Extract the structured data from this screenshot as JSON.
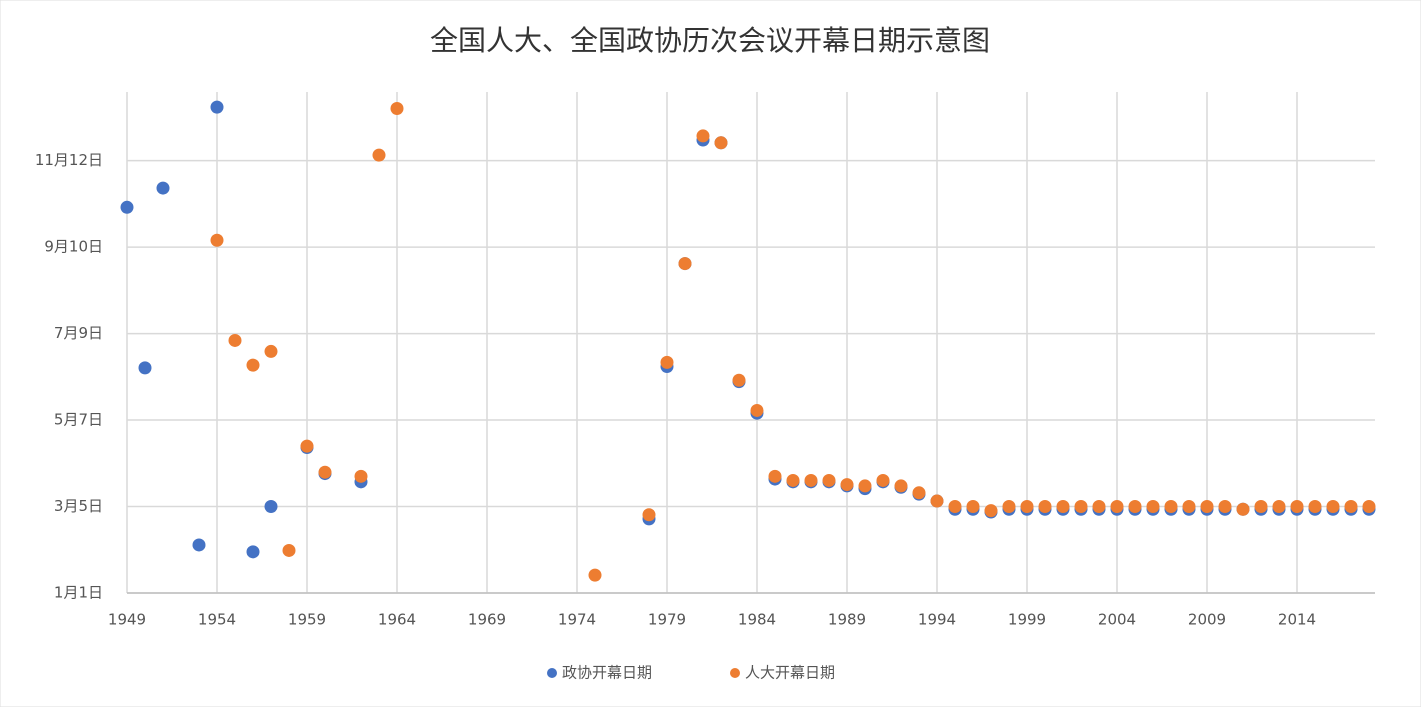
{
  "chart_data": {
    "type": "scatter",
    "title": "全国人大、全国政协历次会议开幕日期示意图",
    "xlim": [
      1949,
      2018
    ],
    "xticks": [
      1949,
      1954,
      1959,
      1964,
      1969,
      1974,
      1979,
      1984,
      1989,
      1994,
      1999,
      2004,
      2009,
      2014
    ],
    "ylim": [
      1,
      366
    ],
    "yticks": [
      {
        "value": 1,
        "label": "1月1日"
      },
      {
        "value": 64,
        "label": "3月5日"
      },
      {
        "value": 127,
        "label": "5月7日"
      },
      {
        "value": 190,
        "label": "7月9日"
      },
      {
        "value": 253,
        "label": "9月10日"
      },
      {
        "value": 316,
        "label": "11月12日"
      }
    ],
    "grid": true,
    "legend": "bottom",
    "series": [
      {
        "name": "政协开幕日期",
        "color": "#4472c4",
        "x": [
          1949,
          1950,
          1951,
          1953,
          1954,
          1956,
          1957,
          1959,
          1960,
          1962,
          1978,
          1979,
          1980,
          1981,
          1982,
          1983,
          1984,
          1985,
          1986,
          1987,
          1988,
          1989,
          1990,
          1991,
          1992,
          1993,
          1994,
          1995,
          1996,
          1997,
          1998,
          1999,
          2000,
          2001,
          2002,
          2003,
          2004,
          2005,
          2006,
          2007,
          2008,
          2009,
          2010,
          2011,
          2012,
          2013,
          2014,
          2015,
          2016,
          2017,
          2018
        ],
        "values": [
          282,
          165,
          296,
          36,
          355,
          31,
          64,
          107,
          88,
          82,
          55,
          166,
          241,
          331,
          329,
          155,
          132,
          84,
          82,
          82,
          82,
          79,
          77,
          82,
          78,
          73,
          68,
          62,
          62,
          60,
          62,
          62,
          62,
          62,
          62,
          62,
          62,
          62,
          62,
          62,
          62,
          62,
          62,
          62,
          62,
          62,
          62,
          62,
          62,
          62,
          62
        ]
      },
      {
        "name": "人大开幕日期",
        "color": "#ed7d31",
        "x": [
          1954,
          1955,
          1956,
          1957,
          1958,
          1959,
          1960,
          1962,
          1963,
          1964,
          1975,
          1978,
          1979,
          1980,
          1981,
          1982,
          1983,
          1984,
          1985,
          1986,
          1987,
          1988,
          1989,
          1990,
          1991,
          1992,
          1993,
          1994,
          1995,
          1996,
          1997,
          1998,
          1999,
          2000,
          2001,
          2002,
          2003,
          2004,
          2005,
          2006,
          2007,
          2008,
          2009,
          2010,
          2011,
          2012,
          2013,
          2014,
          2015,
          2016,
          2017,
          2018
        ],
        "values": [
          258,
          185,
          167,
          177,
          32,
          108,
          89,
          86,
          320,
          354,
          14,
          58,
          169,
          241,
          334,
          329,
          156,
          134,
          86,
          83,
          83,
          83,
          80,
          79,
          83,
          79,
          74,
          68,
          64,
          64,
          61,
          64,
          64,
          64,
          64,
          64,
          64,
          64,
          64,
          64,
          64,
          64,
          64,
          64,
          62,
          64,
          64,
          64,
          64,
          64,
          64,
          64
        ]
      }
    ]
  }
}
